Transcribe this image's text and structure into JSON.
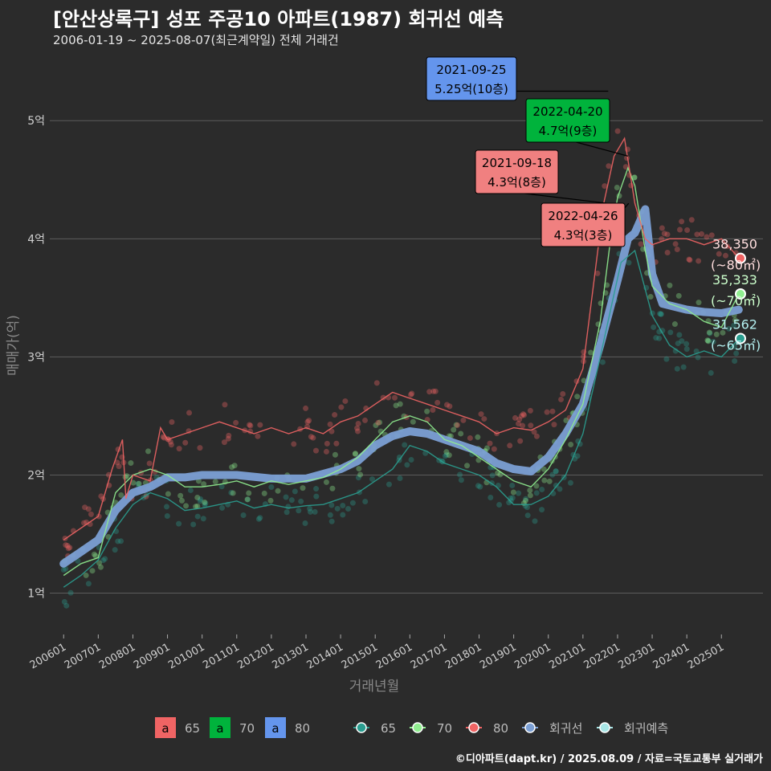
{
  "title": "[안산상록구] 성포 주공10 아파트(1987) 회귀선 예측",
  "subtitle": "2006-01-19 ~ 2025-08-07(최근계약일) 전체 거래건",
  "footer": "©디아파트(dapt.kr) / 2025.08.09 / 자료=국토교통부 실거래가",
  "colors": {
    "background": "#2b2b2b",
    "grid": "#5c5c5c",
    "s65": "#2a9d8f",
    "s65_label": "#b4f0f0",
    "s70": "#90ee90",
    "s70_label": "#ccffcc",
    "s80": "#f06464",
    "trend": "#7b9fd4",
    "annotation_blue": "#6495ed",
    "annotation_green": "#00b33c",
    "annotation_red": "#f08080"
  },
  "chart_data": {
    "type": "scatter",
    "title": "[안산상록구] 성포 주공10 아파트(1987) 회귀선 예측",
    "xlabel": "거래년월",
    "ylabel": "매매가(억)",
    "xlim": [
      2005.6,
      2026.2
    ],
    "ylim": [
      0.65,
      5.6
    ],
    "x_ticks": [
      "200601",
      "200701",
      "200801",
      "200901",
      "201001",
      "201101",
      "201201",
      "201301",
      "201401",
      "201501",
      "201601",
      "201701",
      "201801",
      "201901",
      "202001",
      "202101",
      "202201",
      "202301",
      "202401",
      "202501"
    ],
    "y_ticks": [
      {
        "value": 1,
        "label": "1억"
      },
      {
        "value": 2,
        "label": "2억"
      },
      {
        "value": 3,
        "label": "3억"
      },
      {
        "value": 4,
        "label": "4억"
      },
      {
        "value": 5,
        "label": "5억"
      }
    ],
    "series": [
      {
        "name": "65",
        "color": "#2a9d8f",
        "x": [
          2006.0,
          2006.5,
          2007.0,
          2007.5,
          2008.0,
          2008.5,
          2009.0,
          2009.5,
          2010.0,
          2010.5,
          2011.0,
          2011.5,
          2012.0,
          2012.5,
          2013.0,
          2013.5,
          2014.0,
          2014.5,
          2015.0,
          2015.5,
          2016.0,
          2016.5,
          2017.0,
          2017.5,
          2018.0,
          2018.5,
          2019.0,
          2019.5,
          2020.0,
          2020.5,
          2021.0,
          2021.5,
          2021.8,
          2022.1,
          2022.5,
          2023.0,
          2023.5,
          2024.0,
          2024.5,
          2025.0,
          2025.5
        ],
        "y": [
          1.05,
          1.15,
          1.28,
          1.55,
          1.75,
          1.85,
          1.8,
          1.7,
          1.72,
          1.75,
          1.78,
          1.72,
          1.75,
          1.72,
          1.74,
          1.75,
          1.8,
          1.85,
          1.95,
          2.05,
          2.25,
          2.2,
          2.1,
          2.05,
          2.0,
          1.9,
          1.75,
          1.75,
          1.82,
          2.0,
          2.35,
          3.0,
          3.4,
          3.8,
          3.9,
          3.35,
          3.1,
          3.0,
          3.05,
          3.0,
          3.15
        ]
      },
      {
        "name": "70",
        "color": "#90ee90",
        "x": [
          2006.0,
          2006.5,
          2007.0,
          2007.5,
          2008.0,
          2008.5,
          2009.0,
          2009.5,
          2010.0,
          2010.5,
          2011.0,
          2011.5,
          2012.0,
          2012.5,
          2013.0,
          2013.5,
          2014.0,
          2014.5,
          2015.0,
          2015.5,
          2016.0,
          2016.5,
          2017.0,
          2017.5,
          2018.0,
          2018.5,
          2019.0,
          2019.5,
          2020.0,
          2020.5,
          2021.0,
          2021.5,
          2021.8,
          2022.0,
          2022.3,
          2022.5,
          2022.8,
          2023.0,
          2023.5,
          2024.0,
          2024.5,
          2025.0,
          2025.5
        ],
        "y": [
          1.15,
          1.25,
          1.3,
          1.85,
          2.0,
          2.05,
          2.0,
          1.9,
          1.9,
          1.92,
          1.95,
          1.9,
          1.95,
          1.92,
          1.95,
          1.98,
          2.05,
          2.15,
          2.3,
          2.45,
          2.5,
          2.45,
          2.3,
          2.25,
          2.15,
          2.05,
          1.95,
          1.9,
          2.05,
          2.3,
          2.6,
          3.3,
          4.0,
          4.35,
          4.6,
          4.45,
          3.9,
          3.6,
          3.45,
          3.4,
          3.3,
          3.25,
          3.53
        ]
      },
      {
        "name": "80",
        "color": "#f06464",
        "x": [
          2006.0,
          2006.5,
          2007.0,
          2007.4,
          2007.7,
          2007.8,
          2008.0,
          2008.5,
          2008.8,
          2009.0,
          2009.5,
          2010.0,
          2010.5,
          2011.0,
          2011.5,
          2012.0,
          2012.5,
          2013.0,
          2013.5,
          2014.0,
          2014.5,
          2015.0,
          2015.5,
          2016.0,
          2016.5,
          2017.0,
          2017.5,
          2018.0,
          2018.5,
          2019.0,
          2019.5,
          2020.0,
          2020.5,
          2021.0,
          2021.3,
          2021.6,
          2021.9,
          2022.2,
          2022.5,
          2022.8,
          2023.0,
          2023.5,
          2024.0,
          2024.5,
          2025.0,
          2025.5
        ],
        "y": [
          1.45,
          1.55,
          1.65,
          2.05,
          2.3,
          1.8,
          2.0,
          1.95,
          2.4,
          2.3,
          2.35,
          2.4,
          2.45,
          2.4,
          2.35,
          2.4,
          2.35,
          2.4,
          2.35,
          2.45,
          2.5,
          2.6,
          2.7,
          2.65,
          2.6,
          2.55,
          2.5,
          2.45,
          2.35,
          2.4,
          2.38,
          2.45,
          2.55,
          2.9,
          3.6,
          4.3,
          4.7,
          4.85,
          4.3,
          4.0,
          3.95,
          4.0,
          4.0,
          3.95,
          4.0,
          3.84
        ]
      },
      {
        "name": "회귀선",
        "color": "#7b9fd4",
        "x": [
          2006.0,
          2006.5,
          2007.0,
          2007.5,
          2008.0,
          2008.5,
          2009.0,
          2009.5,
          2010.0,
          2011.0,
          2012.0,
          2013.0,
          2014.0,
          2014.5,
          2015.0,
          2015.5,
          2016.0,
          2016.5,
          2017.0,
          2017.5,
          2018.0,
          2018.5,
          2019.0,
          2019.5,
          2020.0,
          2020.5,
          2021.0,
          2021.5,
          2022.0,
          2022.3,
          2022.5,
          2022.8,
          2023.0,
          2023.3,
          2024.0,
          2024.5,
          2025.0,
          2025.5
        ],
        "y": [
          1.25,
          1.35,
          1.45,
          1.7,
          1.85,
          1.9,
          1.98,
          1.98,
          2.0,
          2.0,
          1.97,
          1.97,
          2.05,
          2.12,
          2.25,
          2.33,
          2.37,
          2.35,
          2.3,
          2.25,
          2.2,
          2.1,
          2.05,
          2.03,
          2.15,
          2.35,
          2.6,
          3.1,
          3.65,
          4.0,
          4.05,
          4.25,
          3.7,
          3.45,
          3.4,
          3.38,
          3.37,
          3.4
        ]
      }
    ],
    "current_predictions": [
      {
        "series": "80",
        "value": 38350,
        "range": "(~80㎡)",
        "y": 3.835
      },
      {
        "series": "70",
        "value": 35333,
        "range": "(~70㎡)",
        "y": 3.533
      },
      {
        "series": "65",
        "value": 31562,
        "range": "(~65㎡)",
        "y": 3.156
      }
    ],
    "annotations": [
      {
        "date": "2021-09-25",
        "price": "5.25억(10층)",
        "series": "80",
        "x": 2021.73,
        "y": 5.25
      },
      {
        "date": "2022-04-20",
        "price": "4.7억(9층)",
        "series": "70",
        "x": 2022.3,
        "y": 4.7
      },
      {
        "date": "2021-09-18",
        "price": "4.3억(8층)",
        "series": "65",
        "x": 2021.72,
        "y": 4.3
      },
      {
        "date": "2022-04-26",
        "price": "4.3억(3층)",
        "series": "65",
        "x": 2022.32,
        "y": 4.3
      }
    ],
    "legend": {
      "position": "bottom",
      "text_keys": [
        {
          "glyph": "a",
          "label": "65",
          "color": "#f06464"
        },
        {
          "glyph": "a",
          "label": "70",
          "color": "#00b33c"
        },
        {
          "glyph": "a",
          "label": "80",
          "color": "#6495ed"
        }
      ],
      "line_keys": [
        {
          "label": "65",
          "color": "#2a9d8f"
        },
        {
          "label": "70",
          "color": "#90ee90"
        },
        {
          "label": "80",
          "color": "#f06464"
        },
        {
          "label": "회귀선",
          "color": "#7b9fd4"
        },
        {
          "label": "회귀예측",
          "color": "#a8e6e6"
        }
      ]
    }
  }
}
